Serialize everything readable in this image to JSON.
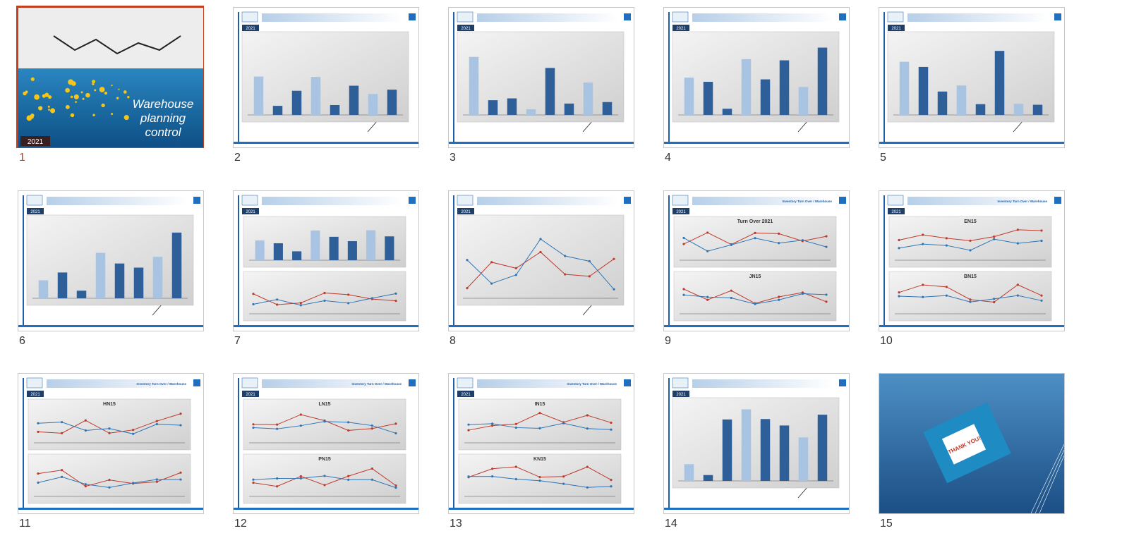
{
  "slides": [
    {
      "number": 1,
      "badge": "2021",
      "title_lines": [
        "Warehouse",
        "planning",
        "control"
      ]
    },
    {
      "number": 2,
      "badge": "2021"
    },
    {
      "number": 3,
      "badge": "2021"
    },
    {
      "number": 4,
      "badge": "2021"
    },
    {
      "number": 5,
      "badge": "2021"
    },
    {
      "number": 6,
      "badge": "2021"
    },
    {
      "number": 7,
      "badge": "2021"
    },
    {
      "number": 8,
      "badge": "2021"
    },
    {
      "number": 9,
      "badge": "2021",
      "header": "Inventory Turn Over / Warehouse",
      "chart_titles": [
        "Turn Over 2021",
        "JN15"
      ]
    },
    {
      "number": 10,
      "badge": "2021",
      "header": "Inventory Turn Over / Warehouse",
      "chart_titles": [
        "EN15",
        "BN15"
      ]
    },
    {
      "number": 11,
      "badge": "2021",
      "header": "Inventory Turn Over / Warehouse",
      "chart_titles": [
        "HN15"
      ]
    },
    {
      "number": 12,
      "badge": "2021",
      "header": "Inventory Turn Over / Warehouse",
      "chart_titles": [
        "LN15",
        "PN15"
      ]
    },
    {
      "number": 13,
      "badge": "2021",
      "header": "Inventory Turn Over / Warehouse",
      "chart_titles": [
        "IN15",
        "KN15"
      ]
    },
    {
      "number": 14,
      "badge": "2021"
    },
    {
      "number": 15,
      "thank_you": "THANK YOU!"
    }
  ]
}
